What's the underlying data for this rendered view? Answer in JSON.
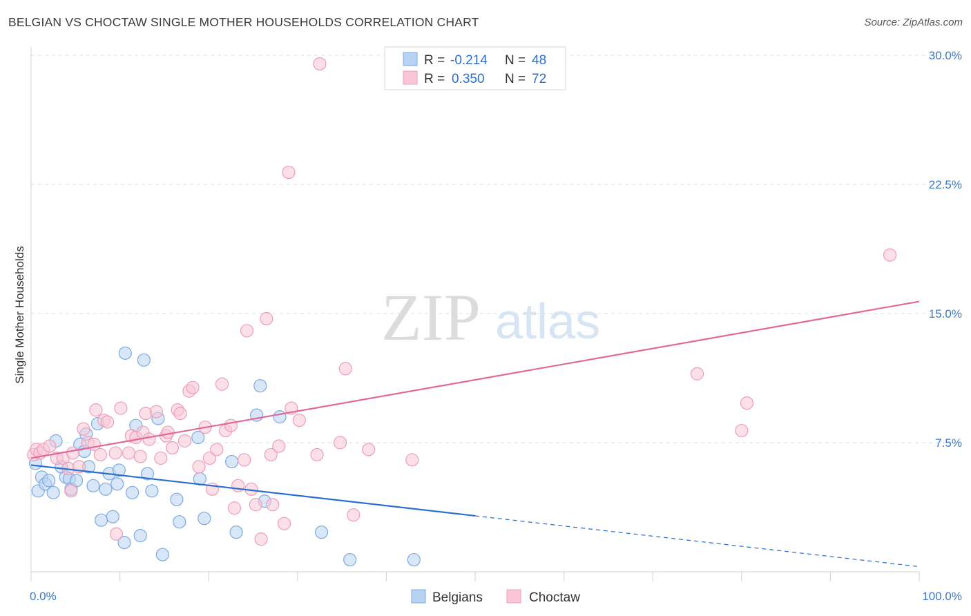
{
  "header": {
    "title": "BELGIAN VS CHOCTAW SINGLE MOTHER HOUSEHOLDS CORRELATION CHART",
    "source": "Source: ZipAtlas.com"
  },
  "watermark": {
    "zip": "ZIP",
    "atlas": "atlas"
  },
  "colors": {
    "blue_fill": "#b8d3f2",
    "blue_stroke": "#7ea9de",
    "blue_line": "#2a6fd0",
    "pink_fill": "#f8c6d6",
    "pink_stroke": "#ee9db8",
    "pink_line": "#e0689a",
    "tick_text": "#3a78c4",
    "grid": "#dedede"
  },
  "chart_data": {
    "type": "scatter",
    "title": "BELGIAN VS CHOCTAW SINGLE MOTHER HOUSEHOLDS CORRELATION CHART",
    "xlabel": "",
    "ylabel": "Single Mother Households",
    "xlim": [
      0,
      100
    ],
    "ylim": [
      0,
      30
    ],
    "x_tick_labels": [
      "0.0%",
      "100.0%"
    ],
    "y_ticks": [
      7.5,
      15.0,
      22.5,
      30.0
    ],
    "y_tick_labels": [
      "7.5%",
      "15.0%",
      "22.5%",
      "30.0%"
    ],
    "legend_stats": [
      {
        "r_label": "R = ",
        "r_value": "-0.214",
        "n_label": "N = ",
        "n_value": "48"
      },
      {
        "r_label": "R = ",
        "r_value": "0.350",
        "n_label": "N = ",
        "n_value": "72"
      }
    ],
    "series": [
      {
        "name": "Belgians",
        "r": -0.214,
        "n": 48,
        "trend": {
          "x0": 0,
          "y0": 6.2,
          "x1": 100,
          "y1": 0.3,
          "solid_until_x": 50
        },
        "points": [
          [
            0.5,
            6.3
          ],
          [
            0.8,
            4.7
          ],
          [
            1.2,
            5.5
          ],
          [
            1.6,
            5.1
          ],
          [
            2.0,
            5.3
          ],
          [
            2.5,
            4.6
          ],
          [
            2.8,
            7.6
          ],
          [
            3.4,
            6.1
          ],
          [
            3.9,
            5.5
          ],
          [
            4.3,
            5.4
          ],
          [
            4.5,
            4.8
          ],
          [
            5.1,
            5.3
          ],
          [
            5.5,
            7.4
          ],
          [
            6.0,
            7.0
          ],
          [
            6.2,
            8.0
          ],
          [
            6.5,
            6.1
          ],
          [
            7.0,
            5.0
          ],
          [
            7.5,
            8.6
          ],
          [
            7.9,
            3.0
          ],
          [
            8.4,
            4.8
          ],
          [
            8.8,
            5.7
          ],
          [
            9.2,
            3.2
          ],
          [
            9.7,
            5.1
          ],
          [
            9.9,
            5.9
          ],
          [
            10.5,
            1.7
          ],
          [
            10.6,
            12.7
          ],
          [
            11.4,
            4.6
          ],
          [
            11.8,
            8.5
          ],
          [
            12.3,
            2.1
          ],
          [
            12.7,
            12.3
          ],
          [
            13.1,
            5.7
          ],
          [
            13.6,
            4.7
          ],
          [
            14.3,
            8.9
          ],
          [
            14.8,
            1.0
          ],
          [
            16.4,
            4.2
          ],
          [
            16.7,
            2.9
          ],
          [
            18.8,
            7.8
          ],
          [
            19.0,
            5.4
          ],
          [
            19.5,
            3.1
          ],
          [
            22.6,
            6.4
          ],
          [
            23.1,
            2.3
          ],
          [
            25.4,
            9.1
          ],
          [
            25.8,
            10.8
          ],
          [
            26.3,
            4.1
          ],
          [
            28.0,
            9.0
          ],
          [
            32.7,
            2.3
          ],
          [
            35.9,
            0.7
          ],
          [
            43.1,
            0.7
          ]
        ]
      },
      {
        "name": "Choctaw",
        "r": 0.35,
        "n": 72,
        "trend": {
          "x0": 0,
          "y0": 6.6,
          "x1": 100,
          "y1": 15.7,
          "solid_until_x": 100
        },
        "points": [
          [
            0.3,
            6.8
          ],
          [
            0.6,
            7.1
          ],
          [
            1.0,
            6.9
          ],
          [
            1.4,
            7.1
          ],
          [
            2.1,
            7.3
          ],
          [
            2.9,
            6.6
          ],
          [
            3.6,
            6.6
          ],
          [
            4.2,
            6.0
          ],
          [
            4.5,
            4.7
          ],
          [
            4.7,
            6.9
          ],
          [
            5.4,
            6.1
          ],
          [
            5.9,
            8.3
          ],
          [
            6.4,
            7.5
          ],
          [
            7.1,
            7.4
          ],
          [
            7.3,
            9.4
          ],
          [
            7.8,
            6.8
          ],
          [
            8.2,
            8.8
          ],
          [
            8.6,
            8.7
          ],
          [
            9.5,
            6.9
          ],
          [
            9.6,
            2.2
          ],
          [
            10.1,
            9.5
          ],
          [
            11.0,
            6.9
          ],
          [
            11.3,
            7.9
          ],
          [
            11.8,
            7.8
          ],
          [
            12.3,
            6.7
          ],
          [
            12.6,
            8.1
          ],
          [
            12.9,
            9.2
          ],
          [
            13.3,
            7.7
          ],
          [
            14.1,
            9.3
          ],
          [
            14.6,
            6.6
          ],
          [
            15.2,
            7.9
          ],
          [
            15.4,
            8.1
          ],
          [
            15.9,
            7.2
          ],
          [
            16.5,
            9.4
          ],
          [
            16.8,
            9.2
          ],
          [
            17.3,
            7.6
          ],
          [
            17.8,
            10.5
          ],
          [
            18.2,
            10.7
          ],
          [
            18.9,
            6.1
          ],
          [
            19.6,
            8.4
          ],
          [
            20.1,
            6.6
          ],
          [
            20.4,
            4.8
          ],
          [
            20.9,
            7.1
          ],
          [
            21.5,
            10.9
          ],
          [
            21.9,
            8.2
          ],
          [
            22.5,
            8.5
          ],
          [
            22.9,
            3.7
          ],
          [
            23.3,
            5.0
          ],
          [
            24.0,
            6.5
          ],
          [
            24.3,
            14.0
          ],
          [
            24.8,
            4.8
          ],
          [
            25.3,
            3.9
          ],
          [
            25.9,
            1.9
          ],
          [
            26.5,
            14.7
          ],
          [
            27.0,
            6.8
          ],
          [
            27.2,
            3.9
          ],
          [
            27.9,
            7.3
          ],
          [
            28.5,
            2.8
          ],
          [
            29.0,
            23.2
          ],
          [
            29.3,
            9.5
          ],
          [
            30.2,
            8.8
          ],
          [
            32.2,
            6.8
          ],
          [
            32.5,
            29.5
          ],
          [
            34.8,
            7.5
          ],
          [
            35.4,
            11.8
          ],
          [
            36.3,
            3.3
          ],
          [
            38.0,
            7.1
          ],
          [
            42.9,
            6.5
          ],
          [
            75.0,
            11.5
          ],
          [
            80.0,
            8.2
          ],
          [
            80.6,
            9.8
          ],
          [
            96.7,
            18.4
          ]
        ]
      }
    ]
  }
}
